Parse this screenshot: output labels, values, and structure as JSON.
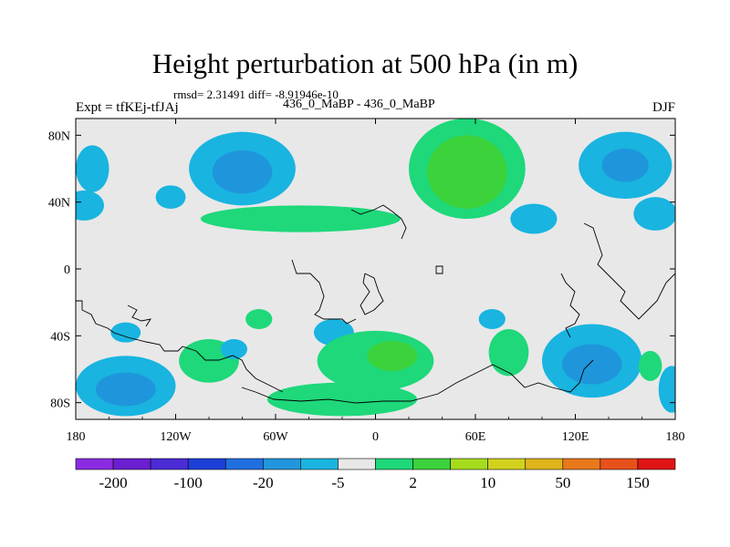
{
  "title": "Height perturbation at 500 hPa (in m)",
  "stats_line": "rmsd= 2.31491 diff= -8.91946e-10",
  "left_label": "Expt = tfKEj-tfJAj",
  "center_label": "436_0_MaBP - 436_0_MaBP",
  "right_label": "DJF",
  "map": {
    "projection": "cylindrical-equidistant",
    "lon_range": [
      -180,
      180
    ],
    "lat_range": [
      -90,
      90
    ],
    "background_color": "#e8e8e8",
    "x_ticks": [
      {
        "value": -180,
        "label": "180"
      },
      {
        "value": -120,
        "label": "120W"
      },
      {
        "value": -60,
        "label": "60W"
      },
      {
        "value": 0,
        "label": "0"
      },
      {
        "value": 60,
        "label": "60E"
      },
      {
        "value": 120,
        "label": "120E"
      },
      {
        "value": 180,
        "label": "180"
      }
    ],
    "y_ticks": [
      {
        "value": 80,
        "label": "80N"
      },
      {
        "value": 40,
        "label": "40N"
      },
      {
        "value": 0,
        "label": "0"
      },
      {
        "value": -40,
        "label": "40S"
      },
      {
        "value": -80,
        "label": "80S"
      }
    ]
  },
  "colorbar": {
    "colors": [
      "#8a2be2",
      "#6a1fd0",
      "#4b2bd6",
      "#1c3fd8",
      "#1f6fe0",
      "#2196dc",
      "#19b4e0",
      "#e8e8e8",
      "#1ed87a",
      "#3cd23c",
      "#a6dc1e",
      "#d2d21e",
      "#e0b41a",
      "#e8781a",
      "#e8501a",
      "#e01414"
    ],
    "labels": [
      {
        "boundary": 1,
        "text": "-200"
      },
      {
        "boundary": 3,
        "text": "-100"
      },
      {
        "boundary": 5,
        "text": "-20"
      },
      {
        "boundary": 7,
        "text": "-5"
      },
      {
        "boundary": 9,
        "text": "2"
      },
      {
        "boundary": 11,
        "text": "10"
      },
      {
        "boundary": 13,
        "text": "50"
      },
      {
        "boundary": 15,
        "text": "150"
      }
    ]
  },
  "contour_patches": [
    {
      "name": "patch-arctic-pacific",
      "level": "cyan",
      "lon": -80,
      "lat": 60,
      "rx": 32,
      "ry": 22
    },
    {
      "name": "patch-arctic-pacific-core",
      "level": "blue",
      "lon": -80,
      "lat": 58,
      "rx": 18,
      "ry": 13
    },
    {
      "name": "patch-na-west",
      "level": "cyan",
      "lon": -170,
      "lat": 60,
      "rx": 10,
      "ry": 14
    },
    {
      "name": "patch-pacific-40n",
      "level": "cyan",
      "lon": -175,
      "lat": 38,
      "rx": 12,
      "ry": 9
    },
    {
      "name": "patch-pacific-45n",
      "level": "cyan",
      "lon": -123,
      "lat": 43,
      "rx": 9,
      "ry": 7
    },
    {
      "name": "patch-siberia",
      "level": "green",
      "lon": 55,
      "lat": 60,
      "rx": 35,
      "ry": 30
    },
    {
      "name": "patch-siberia-core",
      "level": "brightgreen",
      "lon": 55,
      "lat": 58,
      "rx": 24,
      "ry": 22
    },
    {
      "name": "patch-northeast-asia",
      "level": "cyan",
      "lon": 150,
      "lat": 62,
      "rx": 28,
      "ry": 20
    },
    {
      "name": "patch-northeast-asia-core",
      "level": "blue",
      "lon": 150,
      "lat": 62,
      "rx": 14,
      "ry": 10
    },
    {
      "name": "patch-asia-40n",
      "level": "cyan",
      "lon": 95,
      "lat": 30,
      "rx": 14,
      "ry": 9
    },
    {
      "name": "patch-pacific-35n",
      "level": "cyan",
      "lon": 168,
      "lat": 33,
      "rx": 13,
      "ry": 10
    },
    {
      "name": "patch-atlantic-30n",
      "level": "green",
      "lon": -45,
      "lat": 30,
      "rx": 60,
      "ry": 8
    },
    {
      "name": "patch-southeast-pacific",
      "level": "cyan",
      "lon": -150,
      "lat": -38,
      "rx": 9,
      "ry": 6
    },
    {
      "name": "patch-south-atlantic",
      "level": "cyan",
      "lon": -25,
      "lat": -38,
      "rx": 12,
      "ry": 8
    },
    {
      "name": "patch-south-60s",
      "level": "green",
      "lon": -100,
      "lat": -55,
      "rx": 18,
      "ry": 13
    },
    {
      "name": "patch-south-55s",
      "level": "cyan",
      "lon": -85,
      "lat": -48,
      "rx": 8,
      "ry": 6
    },
    {
      "name": "patch-southern-atlantic",
      "level": "green",
      "lon": 0,
      "lat": -55,
      "rx": 35,
      "ry": 18
    },
    {
      "name": "patch-southern-atlantic-core",
      "level": "brightgreen",
      "lon": 10,
      "lat": -52,
      "rx": 15,
      "ry": 9
    },
    {
      "name": "patch-south-70s",
      "level": "cyan",
      "lon": -150,
      "lat": -70,
      "rx": 30,
      "ry": 18
    },
    {
      "name": "patch-south-70s-core",
      "level": "blue",
      "lon": -150,
      "lat": -72,
      "rx": 18,
      "ry": 10
    },
    {
      "name": "patch-indian-ocean",
      "level": "green",
      "lon": 80,
      "lat": -50,
      "rx": 12,
      "ry": 14
    },
    {
      "name": "patch-south-indian",
      "level": "cyan",
      "lon": 130,
      "lat": -55,
      "rx": 30,
      "ry": 22
    },
    {
      "name": "patch-south-indian-core",
      "level": "blue",
      "lon": 130,
      "lat": -57,
      "rx": 18,
      "ry": 12
    },
    {
      "name": "patch-pacific-20s",
      "level": "cyan",
      "lon": 70,
      "lat": -30,
      "rx": 8,
      "ry": 6
    },
    {
      "name": "patch-south-pacific-green",
      "level": "green",
      "lon": 165,
      "lat": -58,
      "rx": 7,
      "ry": 9
    },
    {
      "name": "patch-south-end-cyan",
      "level": "cyan",
      "lon": 178,
      "lat": -72,
      "rx": 8,
      "ry": 14
    },
    {
      "name": "patch-antarctica-green",
      "level": "green",
      "lon": -20,
      "lat": -78,
      "rx": 45,
      "ry": 10
    },
    {
      "name": "patch-tropic-green",
      "level": "green",
      "lon": -70,
      "lat": -30,
      "rx": 8,
      "ry": 6
    }
  ],
  "level_colors": {
    "blue": "#1f96dc",
    "cyan": "#19b4e0",
    "green": "#1ed87a",
    "brightgreen": "#3cd23c"
  }
}
